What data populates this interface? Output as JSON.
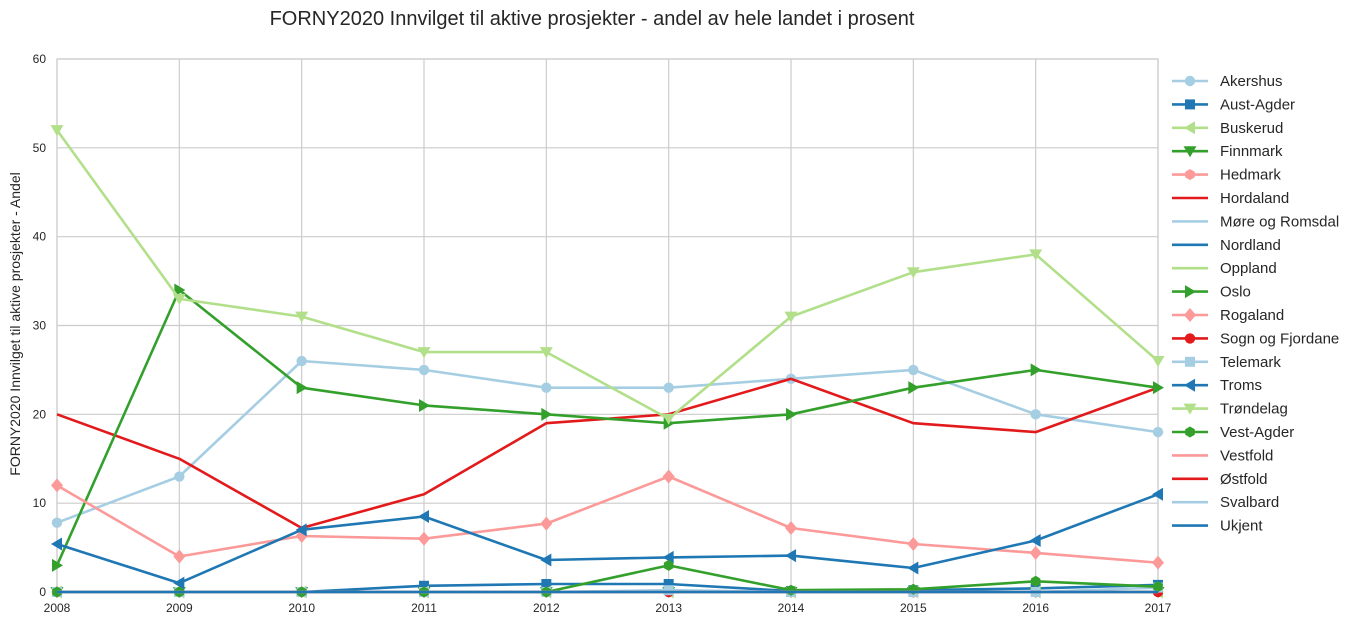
{
  "chart_data": {
    "type": "line",
    "title": "FORNY2020 Innvilget til aktive prosjekter - andel av hele landet i prosent",
    "xlabel": "",
    "ylabel": "FORNY2020 Innvilget til aktive prosjekter - Andel",
    "x": [
      "2008",
      "2009",
      "2010",
      "2011",
      "2012",
      "2013",
      "2014",
      "2015",
      "2016",
      "2017"
    ],
    "ylim": [
      0,
      60
    ],
    "yticks": [
      "0",
      "10",
      "20",
      "30",
      "40",
      "50",
      "60"
    ],
    "grid": true,
    "legend_position": "right",
    "series": [
      {
        "name": "Akershus",
        "color": "#a6cee3",
        "marker": "circle",
        "values": [
          7.8,
          13,
          26,
          25,
          23,
          23,
          24,
          25,
          20,
          18
        ]
      },
      {
        "name": "Aust-Agder",
        "color": "#1f78b4",
        "marker": "square",
        "values": [
          0,
          0,
          0,
          0.7,
          0.9,
          0.9,
          0.1,
          0.2,
          0.4,
          0.8
        ]
      },
      {
        "name": "Buskerud",
        "color": "#b2df8a",
        "marker": "triangle-left",
        "values": [
          0,
          0,
          0,
          0,
          0,
          0,
          0,
          0,
          0,
          0
        ]
      },
      {
        "name": "Finnmark",
        "color": "#33a02c",
        "marker": "triangle-down",
        "values": [
          0,
          0,
          0,
          0,
          0,
          0,
          0,
          0,
          0,
          0
        ]
      },
      {
        "name": "Hedmark",
        "color": "#fb9a99",
        "marker": "hexagon",
        "values": [
          0,
          0,
          0,
          0,
          0,
          0,
          0,
          0,
          0,
          0
        ]
      },
      {
        "name": "Hordaland",
        "color": "#e31a1c",
        "marker": "none",
        "values": [
          20,
          15,
          7.2,
          11,
          19,
          20,
          24,
          19,
          18,
          23
        ]
      },
      {
        "name": "Møre og Romsdal",
        "color": "#a6cee3",
        "marker": "none",
        "values": [
          0,
          0,
          0,
          0,
          0,
          0,
          0,
          0,
          0,
          0
        ]
      },
      {
        "name": "Nordland",
        "color": "#1f78b4",
        "marker": "none",
        "values": [
          0,
          0,
          0,
          0,
          0,
          0,
          0,
          0,
          0,
          0
        ]
      },
      {
        "name": "Oppland",
        "color": "#b2df8a",
        "marker": "none",
        "values": [
          0,
          0,
          0,
          0,
          0,
          0,
          0,
          0,
          0,
          0
        ]
      },
      {
        "name": "Oslo",
        "color": "#33a02c",
        "marker": "triangle-right",
        "values": [
          3,
          34,
          23,
          21,
          20,
          19,
          20,
          23,
          25,
          23
        ]
      },
      {
        "name": "Rogaland",
        "color": "#fb9a99",
        "marker": "diamond",
        "values": [
          12,
          4,
          6.3,
          6,
          7.7,
          13,
          7.2,
          5.4,
          4.4,
          3.3
        ]
      },
      {
        "name": "Sogn og Fjordane",
        "color": "#e31a1c",
        "marker": "circle",
        "values": [
          0,
          0,
          0,
          0,
          0,
          0,
          0,
          0,
          0,
          0
        ]
      },
      {
        "name": "Telemark",
        "color": "#a6cee3",
        "marker": "square",
        "values": [
          0,
          0,
          0,
          0,
          0,
          0.2,
          0,
          0,
          0,
          0.5
        ]
      },
      {
        "name": "Troms",
        "color": "#1f78b4",
        "marker": "triangle-left",
        "values": [
          5.4,
          1,
          7,
          8.5,
          3.6,
          3.9,
          4.1,
          2.7,
          5.8,
          11
        ]
      },
      {
        "name": "Trøndelag",
        "color": "#b2df8a",
        "marker": "triangle-down",
        "values": [
          52,
          33,
          31,
          27,
          27,
          19.5,
          31,
          36,
          38,
          26
        ]
      },
      {
        "name": "Vest-Agder",
        "color": "#33a02c",
        "marker": "hexagon",
        "values": [
          0,
          0,
          0,
          0,
          0,
          3,
          0.2,
          0.3,
          1.2,
          0.6
        ]
      },
      {
        "name": "Vestfold",
        "color": "#fb9a99",
        "marker": "none",
        "values": [
          0,
          0,
          0,
          0,
          0,
          0,
          0,
          0,
          0,
          0
        ]
      },
      {
        "name": "Østfold",
        "color": "#e31a1c",
        "marker": "none",
        "values": [
          0,
          0,
          0,
          0,
          0,
          0,
          0,
          0,
          0,
          0
        ]
      },
      {
        "name": "Svalbard",
        "color": "#a6cee3",
        "marker": "none",
        "values": [
          0,
          0,
          0,
          0,
          0,
          0,
          0,
          0,
          0,
          0
        ]
      },
      {
        "name": "Ukjent",
        "color": "#1f78b4",
        "marker": "none",
        "values": [
          0,
          0,
          0,
          0,
          0,
          0,
          0,
          0,
          0,
          0
        ]
      }
    ]
  }
}
